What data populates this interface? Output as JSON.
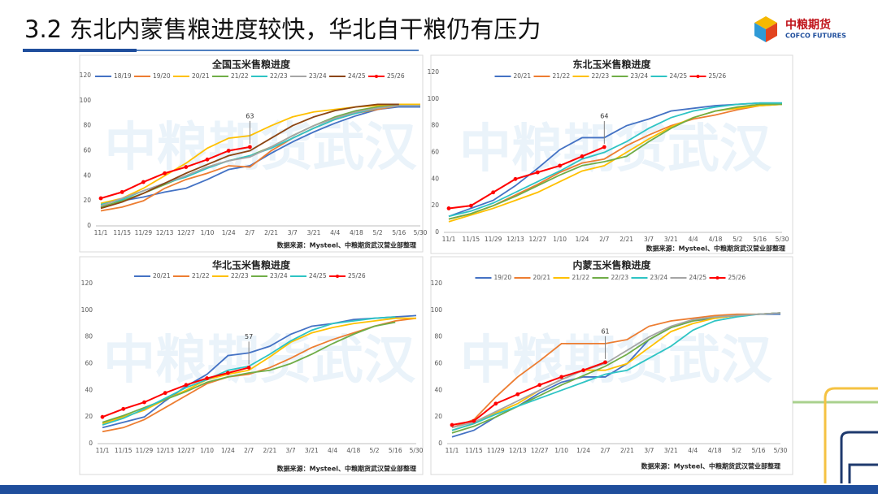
{
  "header": {
    "title": "3.2 东北内蒙售粮进度较快，华北自干粮仍有压力",
    "logo": "中粮期货",
    "logo_en": "COFCO FUTURES"
  },
  "chart_data": [
    {
      "type": "line",
      "title": "全国玉米售粮进度",
      "watermark": "中粮期货武汉",
      "source": "数据来源：Mysteel、中粮期货武汉营业部整理",
      "annotation": "63",
      "categories": [
        "11/1",
        "11/15",
        "11/29",
        "12/13",
        "12/27",
        "1/10",
        "1/24",
        "2/7",
        "2/21",
        "3/7",
        "3/21",
        "4/4",
        "4/18",
        "5/2",
        "5/16",
        "5/30"
      ],
      "ylim": [
        0,
        120
      ],
      "yticks": [
        0,
        20,
        40,
        60,
        80,
        100,
        120
      ],
      "series": [
        {
          "name": "18/19",
          "color": "#4472c4",
          "values": [
            15,
            20,
            23,
            27,
            30,
            37,
            45,
            48,
            58,
            67,
            75,
            82,
            88,
            93,
            95,
            95
          ]
        },
        {
          "name": "19/20",
          "color": "#ed7d31",
          "values": [
            12,
            15,
            20,
            30,
            37,
            42,
            48,
            47,
            60,
            70,
            78,
            85,
            90,
            93,
            96,
            97
          ]
        },
        {
          "name": "20/21",
          "color": "#ffc000",
          "values": [
            18,
            22,
            30,
            40,
            50,
            62,
            70,
            72,
            80,
            87,
            91,
            93,
            95,
            96,
            97,
            97
          ]
        },
        {
          "name": "21/22",
          "color": "#70ad47",
          "values": [
            15,
            20,
            26,
            33,
            40,
            47,
            52,
            56,
            63,
            72,
            80,
            87,
            92,
            95,
            96,
            96
          ]
        },
        {
          "name": "22/23",
          "color": "#2ec4c4",
          "values": [
            17,
            21,
            28,
            34,
            39,
            46,
            52,
            56,
            62,
            70,
            78,
            85,
            90,
            94,
            96,
            96
          ]
        },
        {
          "name": "23/24",
          "color": "#a5a5a5",
          "values": [
            16,
            22,
            28,
            34,
            40,
            47,
            52,
            55,
            63,
            72,
            80,
            86,
            91,
            94,
            96,
            96
          ]
        },
        {
          "name": "24/25",
          "color": "#8b4513",
          "values": [
            14,
            19,
            26,
            34,
            42,
            49,
            56,
            60,
            70,
            80,
            87,
            92,
            95,
            97,
            97,
            null
          ]
        },
        {
          "name": "25/26",
          "color": "#ff0000",
          "marker": true,
          "values": [
            22,
            27,
            35,
            42,
            47,
            53,
            60,
            63,
            null,
            null,
            null,
            null,
            null,
            null,
            null,
            null
          ]
        }
      ]
    },
    {
      "type": "line",
      "title": "东北玉米售粮进度",
      "watermark": "中粮期货武汉",
      "source": "数据来源：Mysteel、中粮期货武汉营业部整理",
      "annotation": "64",
      "categories": [
        "11/1",
        "11/15",
        "11/29",
        "12/13",
        "12/27",
        "1/10",
        "1/24",
        "2/7",
        "2/21",
        "3/7",
        "3/21",
        "4/4",
        "4/18",
        "5/2",
        "5/16",
        "5/30"
      ],
      "ylim": [
        0,
        120
      ],
      "yticks": [
        0,
        20,
        40,
        60,
        80,
        100,
        120
      ],
      "series": [
        {
          "name": "20/21",
          "color": "#4472c4",
          "values": [
            12,
            18,
            24,
            35,
            48,
            62,
            71,
            71,
            80,
            85,
            91,
            93,
            95,
            96,
            97,
            97
          ]
        },
        {
          "name": "21/22",
          "color": "#ed7d31",
          "values": [
            10,
            14,
            20,
            28,
            36,
            45,
            52,
            55,
            65,
            73,
            80,
            85,
            88,
            92,
            95,
            96
          ]
        },
        {
          "name": "22/23",
          "color": "#ffc000",
          "values": [
            8,
            13,
            18,
            24,
            30,
            38,
            46,
            50,
            60,
            70,
            79,
            86,
            91,
            93,
            95,
            96
          ]
        },
        {
          "name": "23/24",
          "color": "#70ad47",
          "values": [
            10,
            14,
            20,
            27,
            35,
            43,
            50,
            53,
            57,
            68,
            78,
            86,
            91,
            94,
            96,
            96
          ]
        },
        {
          "name": "24/25",
          "color": "#2ec4c4",
          "values": [
            12,
            16,
            22,
            30,
            38,
            46,
            55,
            60,
            68,
            78,
            86,
            91,
            94,
            96,
            97,
            97
          ]
        },
        {
          "name": "25/26",
          "color": "#ff0000",
          "marker": true,
          "values": [
            18,
            20,
            30,
            40,
            45,
            50,
            57,
            64,
            null,
            null,
            null,
            null,
            null,
            null,
            null,
            null
          ]
        }
      ]
    },
    {
      "type": "line",
      "title": "华北玉米售粮进度",
      "watermark": "中粮期货武汉",
      "source": "数据来源：Mysteel、中粮期货武汉营业部整理",
      "annotation": "57",
      "categories": [
        "11/1",
        "11/15",
        "11/29",
        "12/13",
        "12/27",
        "1/10",
        "1/24",
        "2/7",
        "2/21",
        "3/7",
        "3/21",
        "4/4",
        "4/18",
        "5/2",
        "5/16",
        "5/30"
      ],
      "ylim": [
        0,
        120
      ],
      "yticks": [
        0,
        20,
        40,
        60,
        80,
        100,
        120
      ],
      "series": [
        {
          "name": "20/21",
          "color": "#4472c4",
          "values": [
            12,
            16,
            20,
            32,
            43,
            52,
            66,
            68,
            73,
            82,
            88,
            90,
            93,
            94,
            95,
            96
          ]
        },
        {
          "name": "21/22",
          "color": "#ed7d31",
          "values": [
            9,
            12,
            18,
            27,
            36,
            45,
            50,
            52,
            57,
            64,
            72,
            78,
            83,
            88,
            92,
            94
          ]
        },
        {
          "name": "22/23",
          "color": "#ffc000",
          "values": [
            15,
            20,
            25,
            33,
            40,
            48,
            52,
            55,
            65,
            76,
            83,
            87,
            90,
            92,
            94,
            94
          ]
        },
        {
          "name": "23/24",
          "color": "#70ad47",
          "values": [
            16,
            21,
            27,
            33,
            39,
            46,
            50,
            53,
            55,
            60,
            67,
            75,
            82,
            88,
            91,
            null
          ]
        },
        {
          "name": "24/25",
          "color": "#2ec4c4",
          "values": [
            14,
            19,
            26,
            34,
            42,
            48,
            55,
            58,
            67,
            77,
            85,
            90,
            92,
            94,
            95,
            null
          ]
        },
        {
          "name": "25/26",
          "color": "#ff0000",
          "marker": true,
          "values": [
            20,
            26,
            31,
            38,
            44,
            49,
            53,
            57,
            null,
            null,
            null,
            null,
            null,
            null,
            null,
            null
          ]
        }
      ]
    },
    {
      "type": "line",
      "title": "内蒙玉米售粮进度",
      "watermark": "中粮期货武汉",
      "source": "数据来源：Mysteel、中粮期货武汉营业部整理",
      "annotation": "61",
      "categories": [
        "11/1",
        "11/15",
        "11/29",
        "12/13",
        "12/27",
        "1/10",
        "1/24",
        "2/7",
        "2/21",
        "3/7",
        "3/21",
        "4/4",
        "4/18",
        "5/2",
        "5/16",
        "5/30"
      ],
      "ylim": [
        0,
        120
      ],
      "yticks": [
        0,
        20,
        40,
        60,
        80,
        100,
        120
      ],
      "series": [
        {
          "name": "19/20",
          "color": "#4472c4",
          "values": [
            5,
            10,
            20,
            28,
            38,
            46,
            50,
            50,
            60,
            78,
            87,
            92,
            94,
            96,
            97,
            97
          ]
        },
        {
          "name": "20/21",
          "color": "#ed7d31",
          "values": [
            12,
            18,
            35,
            50,
            62,
            75,
            75,
            75,
            78,
            88,
            92,
            94,
            96,
            97,
            97,
            98
          ]
        },
        {
          "name": "21/22",
          "color": "#ffc000",
          "values": [
            10,
            15,
            23,
            30,
            40,
            48,
            55,
            55,
            60,
            72,
            84,
            90,
            94,
            96,
            97,
            98
          ]
        },
        {
          "name": "22/23",
          "color": "#70ad47",
          "values": [
            8,
            13,
            20,
            28,
            36,
            44,
            51,
            58,
            67,
            78,
            87,
            92,
            95,
            96,
            97,
            98
          ]
        },
        {
          "name": "23/24",
          "color": "#2ec4c4",
          "values": [
            10,
            15,
            22,
            28,
            34,
            40,
            46,
            52,
            55,
            64,
            73,
            85,
            92,
            95,
            97,
            98
          ]
        },
        {
          "name": "24/25",
          "color": "#a5a5a5",
          "values": [
            12,
            16,
            24,
            32,
            40,
            48,
            55,
            60,
            70,
            80,
            88,
            93,
            95,
            96,
            97,
            98
          ]
        },
        {
          "name": "25/26",
          "color": "#ff0000",
          "marker": true,
          "values": [
            14,
            17,
            30,
            37,
            44,
            50,
            55,
            61,
            null,
            null,
            null,
            null,
            null,
            null,
            null,
            null
          ]
        }
      ]
    }
  ]
}
